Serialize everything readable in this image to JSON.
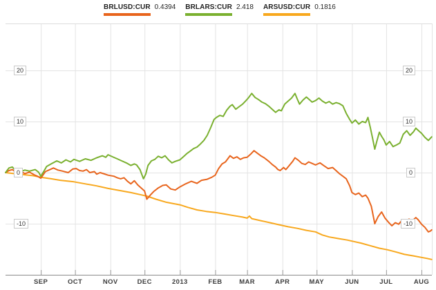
{
  "legend": {
    "items": [
      {
        "ticker": "BRLUSD:CUR",
        "value": "0.4394",
        "color": "#e8641c"
      },
      {
        "ticker": "BRLARS:CUR",
        "value": "2.418",
        "color": "#7ab02f"
      },
      {
        "ticker": "ARSUSD:CUR",
        "value": "0.1816",
        "color": "#f8a81d"
      }
    ]
  },
  "chart_data": {
    "type": "line",
    "title": "",
    "subtitle": "",
    "legend_position": "top",
    "grid": true,
    "x_axis": {
      "unit": "days since 2012-08-01",
      "range": [
        0,
        374
      ],
      "ticks": [
        {
          "label": "SEP",
          "day": 31
        },
        {
          "label": "OCT",
          "day": 61
        },
        {
          "label": "NOV",
          "day": 92
        },
        {
          "label": "DEC",
          "day": 122
        },
        {
          "label": "2013",
          "day": 153
        },
        {
          "label": "FEB",
          "day": 184
        },
        {
          "label": "MAR",
          "day": 212
        },
        {
          "label": "APR",
          "day": 243
        },
        {
          "label": "MAY",
          "day": 273
        },
        {
          "label": "JUN",
          "day": 304
        },
        {
          "label": "JUL",
          "day": 334
        },
        {
          "label": "AUG",
          "day": 365
        }
      ]
    },
    "y_axis": {
      "unit": "% change",
      "gridlines": [
        20,
        10,
        0,
        -10
      ],
      "tick_labels": [
        "20",
        "10",
        "0",
        "-10"
      ],
      "labels_on": "both-sides"
    },
    "series": [
      {
        "name": "ARSUSD:CUR",
        "last_quote": "0.1816",
        "color": "#f8a81d",
        "points": [
          [
            0,
            0
          ],
          [
            8,
            -0.2
          ],
          [
            16,
            -0.4
          ],
          [
            24,
            -0.6
          ],
          [
            31,
            -0.9
          ],
          [
            40,
            -1.2
          ],
          [
            48,
            -1.5
          ],
          [
            60,
            -1.8
          ],
          [
            70,
            -2.2
          ],
          [
            80,
            -2.6
          ],
          [
            90,
            -3.1
          ],
          [
            100,
            -3.5
          ],
          [
            110,
            -3.9
          ],
          [
            118,
            -4.3
          ],
          [
            124,
            -4.6
          ],
          [
            132,
            -5.2
          ],
          [
            141,
            -5.8
          ],
          [
            148,
            -6.1
          ],
          [
            153,
            -6.3
          ],
          [
            160,
            -6.8
          ],
          [
            168,
            -7.3
          ],
          [
            176,
            -7.6
          ],
          [
            184,
            -7.8
          ],
          [
            192,
            -8.1
          ],
          [
            200,
            -8.4
          ],
          [
            208,
            -8.7
          ],
          [
            212,
            -8.9
          ],
          [
            214,
            -8.5
          ],
          [
            216,
            -9.0
          ],
          [
            224,
            -9.4
          ],
          [
            232,
            -9.8
          ],
          [
            240,
            -10.2
          ],
          [
            248,
            -10.6
          ],
          [
            256,
            -10.9
          ],
          [
            264,
            -11.3
          ],
          [
            272,
            -11.6
          ],
          [
            278,
            -12.2
          ],
          [
            284,
            -12.6
          ],
          [
            292,
            -12.9
          ],
          [
            300,
            -13.2
          ],
          [
            304,
            -13.4
          ],
          [
            312,
            -13.8
          ],
          [
            320,
            -14.3
          ],
          [
            328,
            -14.8
          ],
          [
            335,
            -15.1
          ],
          [
            342,
            -15.5
          ],
          [
            350,
            -16.0
          ],
          [
            358,
            -16.3
          ],
          [
            365,
            -16.6
          ],
          [
            370,
            -16.8
          ],
          [
            374,
            -17.0
          ]
        ]
      },
      {
        "name": "BRLUSD:CUR",
        "last_quote": "0.4394",
        "color": "#e8641c",
        "points": [
          [
            0,
            0
          ],
          [
            3,
            0.4
          ],
          [
            6,
            0.6
          ],
          [
            9,
            0.1
          ],
          [
            13,
            0.3
          ],
          [
            17,
            -0.2
          ],
          [
            21,
            0.1
          ],
          [
            25,
            -0.4
          ],
          [
            28,
            -0.7
          ],
          [
            31,
            -1.1
          ],
          [
            35,
            0.2
          ],
          [
            38,
            0.5
          ],
          [
            42,
            0.9
          ],
          [
            46,
            0.5
          ],
          [
            50,
            0.3
          ],
          [
            55,
            0.0
          ],
          [
            59,
            0.7
          ],
          [
            62,
            0.8
          ],
          [
            65,
            0.4
          ],
          [
            68,
            0.3
          ],
          [
            71,
            0.6
          ],
          [
            74,
            0.0
          ],
          [
            78,
            0.2
          ],
          [
            80,
            -0.3
          ],
          [
            83,
            0.0
          ],
          [
            86,
            -0.2
          ],
          [
            90,
            -0.5
          ],
          [
            95,
            -0.7
          ],
          [
            98,
            -1.0
          ],
          [
            101,
            -1.2
          ],
          [
            104,
            -1.0
          ],
          [
            107,
            -1.7
          ],
          [
            110,
            -2.2
          ],
          [
            113,
            -1.6
          ],
          [
            116,
            -2.4
          ],
          [
            119,
            -3.0
          ],
          [
            122,
            -3.6
          ],
          [
            124,
            -5.2
          ],
          [
            127,
            -4.4
          ],
          [
            130,
            -3.7
          ],
          [
            134,
            -3.0
          ],
          [
            138,
            -2.5
          ],
          [
            141,
            -2.4
          ],
          [
            145,
            -3.2
          ],
          [
            149,
            -3.4
          ],
          [
            153,
            -2.8
          ],
          [
            158,
            -2.2
          ],
          [
            163,
            -1.7
          ],
          [
            168,
            -2.1
          ],
          [
            172,
            -1.5
          ],
          [
            177,
            -1.3
          ],
          [
            181,
            -0.9
          ],
          [
            184,
            -0.5
          ],
          [
            187,
            0.8
          ],
          [
            190,
            1.7
          ],
          [
            193,
            2.1
          ],
          [
            197,
            3.3
          ],
          [
            200,
            2.8
          ],
          [
            203,
            3.1
          ],
          [
            206,
            2.6
          ],
          [
            209,
            2.9
          ],
          [
            212,
            3.0
          ],
          [
            215,
            3.6
          ],
          [
            218,
            4.3
          ],
          [
            221,
            3.8
          ],
          [
            224,
            3.3
          ],
          [
            227,
            2.9
          ],
          [
            231,
            2.2
          ],
          [
            234,
            1.6
          ],
          [
            237,
            1.1
          ],
          [
            239,
            0.6
          ],
          [
            241,
            0.4
          ],
          [
            244,
            1.0
          ],
          [
            246,
            0.6
          ],
          [
            249,
            1.4
          ],
          [
            252,
            2.2
          ],
          [
            254,
            2.9
          ],
          [
            257,
            2.4
          ],
          [
            260,
            1.8
          ],
          [
            263,
            1.6
          ],
          [
            266,
            2.1
          ],
          [
            269,
            1.8
          ],
          [
            272,
            1.5
          ],
          [
            276,
            1.9
          ],
          [
            279,
            1.4
          ],
          [
            283,
            0.8
          ],
          [
            287,
            1.0
          ],
          [
            290,
            0.4
          ],
          [
            293,
            -0.2
          ],
          [
            296,
            -0.7
          ],
          [
            299,
            -1.2
          ],
          [
            302,
            -2.6
          ],
          [
            304,
            -3.9
          ],
          [
            307,
            -4.3
          ],
          [
            310,
            -4.0
          ],
          [
            313,
            -4.7
          ],
          [
            316,
            -4.4
          ],
          [
            318,
            -5.0
          ],
          [
            321,
            -6.6
          ],
          [
            324,
            -10.0
          ],
          [
            327,
            -8.6
          ],
          [
            330,
            -7.7
          ],
          [
            333,
            -8.9
          ],
          [
            336,
            -9.7
          ],
          [
            339,
            -10.4
          ],
          [
            342,
            -9.8
          ],
          [
            345,
            -10.1
          ],
          [
            348,
            -9.3
          ],
          [
            351,
            -9.6
          ],
          [
            354,
            -9.1
          ],
          [
            357,
            -9.4
          ],
          [
            360,
            -8.8
          ],
          [
            362,
            -9.2
          ],
          [
            365,
            -10.1
          ],
          [
            368,
            -10.7
          ],
          [
            371,
            -11.6
          ],
          [
            373,
            -11.4
          ],
          [
            374,
            -11.2
          ]
        ]
      },
      {
        "name": "BRLARS:CUR",
        "last_quote": "2.418",
        "color": "#7ab02f",
        "points": [
          [
            0,
            0
          ],
          [
            3,
            0.9
          ],
          [
            6,
            1.1
          ],
          [
            9,
            0.4
          ],
          [
            13,
            0.2
          ],
          [
            17,
            0.5
          ],
          [
            21,
            0.3
          ],
          [
            26,
            0.6
          ],
          [
            29,
            0.1
          ],
          [
            31,
            -0.7
          ],
          [
            34,
            0.4
          ],
          [
            36,
            1.2
          ],
          [
            40,
            1.7
          ],
          [
            45,
            2.3
          ],
          [
            49,
            1.9
          ],
          [
            53,
            2.5
          ],
          [
            57,
            2.1
          ],
          [
            60,
            2.6
          ],
          [
            65,
            2.2
          ],
          [
            70,
            2.7
          ],
          [
            75,
            2.4
          ],
          [
            80,
            2.9
          ],
          [
            85,
            3.3
          ],
          [
            88,
            3.0
          ],
          [
            90,
            3.5
          ],
          [
            94,
            3.1
          ],
          [
            98,
            2.7
          ],
          [
            102,
            2.3
          ],
          [
            106,
            1.9
          ],
          [
            110,
            1.4
          ],
          [
            113,
            1.7
          ],
          [
            115,
            1.5
          ],
          [
            118,
            0.6
          ],
          [
            121,
            -1.2
          ],
          [
            123,
            -0.3
          ],
          [
            125,
            1.4
          ],
          [
            128,
            2.3
          ],
          [
            131,
            2.6
          ],
          [
            134,
            3.2
          ],
          [
            137,
            2.9
          ],
          [
            140,
            3.3
          ],
          [
            143,
            2.5
          ],
          [
            146,
            1.9
          ],
          [
            149,
            2.2
          ],
          [
            153,
            2.5
          ],
          [
            156,
            3.1
          ],
          [
            159,
            3.7
          ],
          [
            162,
            4.2
          ],
          [
            165,
            4.7
          ],
          [
            168,
            5.0
          ],
          [
            171,
            5.6
          ],
          [
            174,
            6.3
          ],
          [
            177,
            7.3
          ],
          [
            180,
            8.8
          ],
          [
            183,
            10.4
          ],
          [
            185,
            10.8
          ],
          [
            188,
            11.2
          ],
          [
            191,
            11.0
          ],
          [
            194,
            12.2
          ],
          [
            197,
            13.0
          ],
          [
            199,
            13.3
          ],
          [
            202,
            12.4
          ],
          [
            205,
            12.9
          ],
          [
            208,
            13.4
          ],
          [
            211,
            14.1
          ],
          [
            213,
            14.6
          ],
          [
            216,
            15.5
          ],
          [
            219,
            14.7
          ],
          [
            222,
            14.3
          ],
          [
            225,
            13.8
          ],
          [
            228,
            13.5
          ],
          [
            231,
            13.0
          ],
          [
            234,
            12.4
          ],
          [
            237,
            11.8
          ],
          [
            240,
            12.3
          ],
          [
            242,
            12.1
          ],
          [
            245,
            13.4
          ],
          [
            248,
            14.0
          ],
          [
            251,
            14.6
          ],
          [
            254,
            15.5
          ],
          [
            256,
            14.4
          ],
          [
            258,
            13.4
          ],
          [
            261,
            14.2
          ],
          [
            264,
            14.8
          ],
          [
            267,
            14.2
          ],
          [
            269,
            13.8
          ],
          [
            272,
            14.1
          ],
          [
            275,
            14.6
          ],
          [
            278,
            14.0
          ],
          [
            281,
            13.6
          ],
          [
            284,
            13.9
          ],
          [
            287,
            13.4
          ],
          [
            290,
            13.7
          ],
          [
            293,
            13.5
          ],
          [
            296,
            13.1
          ],
          [
            299,
            11.6
          ],
          [
            302,
            10.4
          ],
          [
            304,
            9.7
          ],
          [
            307,
            10.3
          ],
          [
            310,
            9.5
          ],
          [
            313,
            10.0
          ],
          [
            316,
            9.8
          ],
          [
            318,
            10.8
          ],
          [
            320,
            8.9
          ],
          [
            322,
            6.8
          ],
          [
            324,
            4.6
          ],
          [
            326,
            6.3
          ],
          [
            328,
            7.9
          ],
          [
            330,
            7.1
          ],
          [
            332,
            6.4
          ],
          [
            334,
            5.4
          ],
          [
            337,
            6.1
          ],
          [
            340,
            5.1
          ],
          [
            343,
            5.4
          ],
          [
            346,
            5.8
          ],
          [
            349,
            7.5
          ],
          [
            352,
            8.2
          ],
          [
            355,
            7.3
          ],
          [
            358,
            8.0
          ],
          [
            360,
            8.7
          ],
          [
            363,
            8.1
          ],
          [
            365,
            7.7
          ],
          [
            368,
            6.9
          ],
          [
            371,
            6.3
          ],
          [
            374,
            7.0
          ]
        ]
      }
    ]
  },
  "colors": {
    "background": "#ffffff",
    "gridline": "#e3e3e3",
    "plot_border": "#dcdcdc",
    "axis_line": "#8a8a8a",
    "tick": "#9a9a9a",
    "label_text": "#333333",
    "legend_text": "#1f1f1f"
  }
}
